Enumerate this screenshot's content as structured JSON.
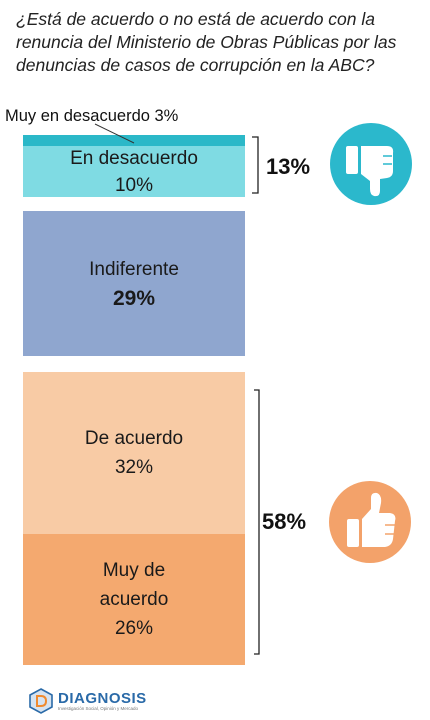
{
  "question": "¿Está de acuerdo o no está de acuerdo con la renuncia del Ministerio de Obras Públicas por las denuncias de casos de corrupción en la ABC?",
  "chart_data": {
    "type": "bar",
    "orientation": "stacked-vertical",
    "categories": [
      "Muy en desacuerdo",
      "En desacuerdo",
      "Indiferente",
      "De acuerdo",
      "Muy de acuerdo"
    ],
    "values": [
      3,
      10,
      29,
      32,
      26
    ],
    "unit": "%",
    "labels": {
      "muy_desacuerdo": "Muy en desacuerdo 3%",
      "desacuerdo_name": "En desacuerdo",
      "desacuerdo_value": "10%",
      "indiferente_name": "Indiferente",
      "indiferente_value": "29%",
      "acuerdo_name": "De acuerdo",
      "acuerdo_value": "32%",
      "muy_acuerdo_name_1": "Muy de",
      "muy_acuerdo_name_2": "acuerdo",
      "muy_acuerdo_value": "26%"
    },
    "groups": [
      {
        "total_label": "13%",
        "members": [
          "Muy en desacuerdo",
          "En desacuerdo"
        ],
        "icon": "thumbs-down-icon"
      },
      {
        "total_label": "58%",
        "members": [
          "De acuerdo",
          "Muy de acuerdo"
        ],
        "icon": "thumbs-up-icon"
      }
    ],
    "colors": {
      "muy_desacuerdo": "#2bb8c8",
      "desacuerdo": "#7fdbe3",
      "indiferente": "#8fa6cf",
      "acuerdo": "#f8cba5",
      "muy_acuerdo": "#f4a96f",
      "thumbs_down_circle": "#2bb8cc",
      "thumbs_up_circle": "#f3a26a"
    }
  },
  "footer": {
    "logo_name": "DIAGNOSIS",
    "logo_tagline": "Investigación Social, Opinión y Mercado"
  }
}
